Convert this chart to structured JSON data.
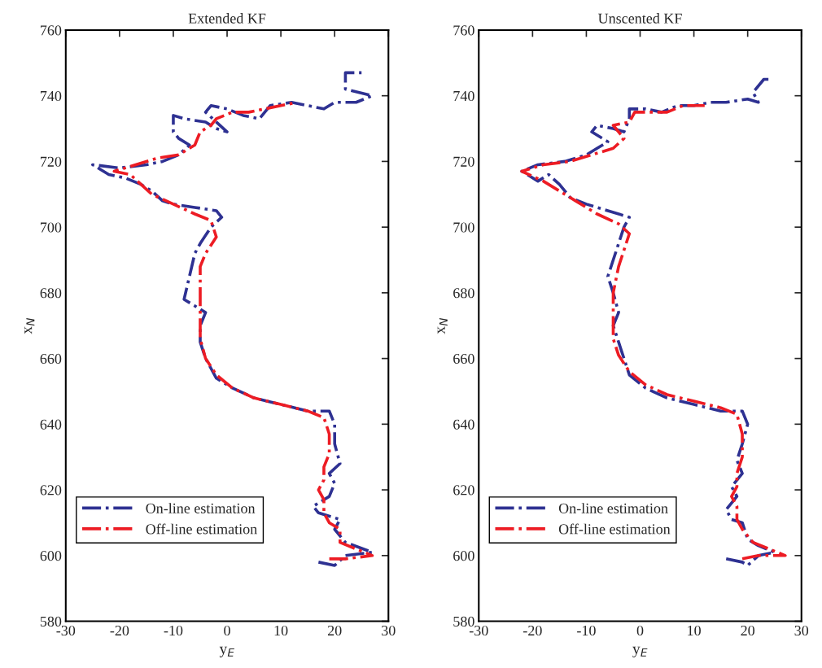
{
  "chart_data": [
    {
      "type": "line",
      "title": "Extended KF",
      "xlabel": "y$_{E}$",
      "ylabel": "x$_{N}$",
      "xlim": [
        -30,
        30
      ],
      "xticks": [
        -30,
        -20,
        -10,
        0,
        10,
        20,
        30
      ],
      "ylim": [
        580,
        760
      ],
      "yticks": [
        580,
        600,
        620,
        640,
        660,
        680,
        700,
        720,
        740,
        760
      ],
      "grid": false,
      "legend": "bottom left",
      "line_style": "dashdot",
      "marker": "none",
      "series": [
        {
          "name": "On-line estimation",
          "color": "#2e3192",
          "x": [
            17,
            20,
            22,
            27,
            22,
            20,
            21,
            17,
            16,
            19,
            20,
            19,
            21,
            20,
            20,
            19,
            15,
            10,
            5,
            1,
            -2,
            -4,
            -5,
            -5,
            -4,
            -6,
            -8,
            -7,
            -6,
            -5,
            -3,
            -1,
            -2,
            -6,
            -10,
            -12,
            -14,
            -16,
            -19,
            -22,
            -25,
            -20,
            -15,
            -12,
            -9,
            -7,
            -9,
            -10,
            -10,
            -8,
            -4,
            -2,
            0,
            -4,
            -3,
            0,
            3,
            6,
            8,
            12,
            15,
            18,
            20,
            24,
            27,
            22,
            22,
            25
          ],
          "values": [
            598,
            597,
            600,
            601,
            604,
            608,
            611,
            613,
            615,
            618,
            622,
            625,
            628,
            634,
            640,
            644,
            644,
            646,
            648,
            651,
            654,
            660,
            665,
            670,
            674,
            676,
            678,
            685,
            692,
            695,
            700,
            703,
            705,
            706,
            707,
            708,
            711,
            713,
            715,
            716,
            719,
            718,
            719,
            720,
            722,
            725,
            727,
            729,
            734,
            733,
            732,
            730,
            729,
            735,
            737,
            736,
            734,
            733,
            737,
            738,
            737,
            736,
            738,
            738,
            740,
            742,
            747,
            747
          ]
        },
        {
          "name": "Off-line estimation",
          "color": "#ed1c24",
          "x": [
            19,
            22,
            27,
            24,
            21,
            21,
            19,
            18,
            18,
            17,
            18,
            18,
            19,
            19,
            18,
            15,
            10,
            5,
            1,
            -2,
            -4,
            -5,
            -5,
            -5,
            -5,
            -4,
            -2,
            -3,
            -6,
            -10,
            -14,
            -16,
            -18,
            -21,
            -17,
            -13,
            -9,
            -6,
            -5,
            -3,
            -2,
            1,
            4,
            7,
            10,
            13
          ],
          "values": [
            599,
            599,
            600,
            602,
            604,
            608,
            610,
            613,
            617,
            620,
            623,
            627,
            631,
            637,
            642,
            644,
            646,
            648,
            651,
            655,
            660,
            666,
            672,
            680,
            688,
            692,
            697,
            702,
            704,
            707,
            710,
            713,
            716,
            717,
            719,
            721,
            722,
            725,
            729,
            731,
            733,
            735,
            735,
            736,
            737,
            738
          ]
        }
      ]
    },
    {
      "type": "line",
      "title": "Unscented KF",
      "xlabel": "y$_{E}$",
      "ylabel": "x$_{N}$",
      "xlim": [
        -30,
        30
      ],
      "xticks": [
        -30,
        -20,
        -10,
        0,
        10,
        20,
        30
      ],
      "ylim": [
        580,
        760
      ],
      "yticks": [
        580,
        600,
        620,
        640,
        660,
        680,
        700,
        720,
        740,
        760
      ],
      "grid": false,
      "legend": "bottom left",
      "line_style": "dashdot",
      "marker": "none",
      "series": [
        {
          "name": "On-line estimation",
          "color": "#2e3192",
          "x": [
            16,
            19,
            20,
            22,
            25,
            22,
            20,
            19,
            17,
            16,
            18,
            17,
            19,
            18,
            19,
            20,
            19,
            15,
            10,
            5,
            1,
            -2,
            -3,
            -4,
            -5,
            -4,
            -5,
            -6,
            -5,
            -4,
            -3,
            -2,
            -6,
            -10,
            -13,
            -15,
            -17,
            -19,
            -21,
            -22,
            -19,
            -14,
            -10,
            -8,
            -6,
            -9,
            -8,
            -5,
            -3,
            -2,
            -2,
            1,
            4,
            7,
            10,
            13,
            16,
            20,
            22,
            21,
            23,
            24
          ],
          "values": [
            599,
            598,
            597,
            600,
            601,
            603,
            605,
            610,
            611,
            614,
            618,
            621,
            625,
            629,
            634,
            640,
            644,
            644,
            646,
            648,
            651,
            655,
            660,
            665,
            670,
            674,
            680,
            685,
            690,
            695,
            700,
            703,
            705,
            707,
            709,
            713,
            716,
            714,
            716,
            717,
            719,
            720,
            722,
            724,
            726,
            729,
            731,
            730,
            729,
            733,
            736,
            736,
            735,
            737,
            737,
            738,
            738,
            739,
            738,
            741,
            745,
            745
          ]
        },
        {
          "name": "Off-line estimation",
          "color": "#ed1c24",
          "x": [
            19,
            22,
            27,
            24,
            21,
            19,
            18,
            18,
            17,
            18,
            18,
            19,
            19,
            18,
            15,
            10,
            5,
            1,
            -2,
            -4,
            -5,
            -5,
            -5,
            -4,
            -3,
            -2,
            -4,
            -8,
            -12,
            -15,
            -18,
            -22,
            -18,
            -13,
            -9,
            -5,
            -3,
            -5,
            -2,
            -1,
            2,
            5,
            8,
            12
          ],
          "values": [
            599,
            600,
            600,
            602,
            604,
            608,
            611,
            615,
            618,
            621,
            625,
            630,
            637,
            643,
            645,
            647,
            649,
            652,
            656,
            661,
            666,
            672,
            680,
            688,
            693,
            698,
            701,
            704,
            708,
            711,
            714,
            717,
            719,
            720,
            722,
            724,
            727,
            731,
            732,
            735,
            735,
            735,
            737,
            737
          ]
        }
      ]
    }
  ]
}
